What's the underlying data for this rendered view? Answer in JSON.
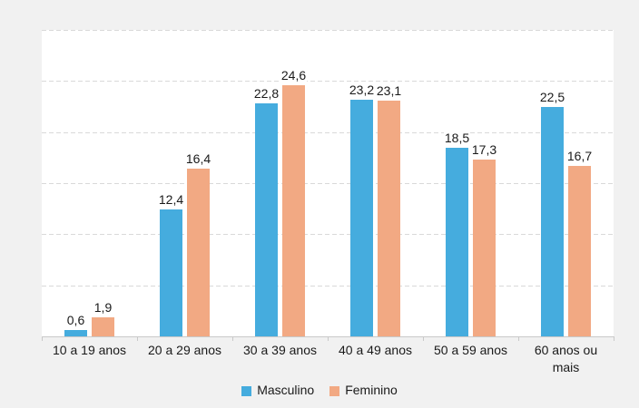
{
  "chart_data": {
    "type": "bar",
    "title": "",
    "xlabel": "",
    "ylabel": "",
    "categories": [
      "10 a 19 anos",
      "20 a 29 anos",
      "30 a 39 anos",
      "40 a 49 anos",
      "50 a 59 anos",
      "60 anos ou mais"
    ],
    "series": [
      {
        "name": "Masculino",
        "color": "#45ACDE",
        "values": [
          0.6,
          12.4,
          22.8,
          23.2,
          18.5,
          22.5
        ],
        "value_labels": [
          "0,6",
          "12,4",
          "22,8",
          "23,2",
          "18,5",
          "22,5"
        ]
      },
      {
        "name": "Feminino",
        "color": "#F2A983",
        "values": [
          1.9,
          16.4,
          24.6,
          23.1,
          17.3,
          16.7
        ],
        "value_labels": [
          "1,9",
          "16,4",
          "24,6",
          "23,1",
          "17,3",
          "16,7"
        ]
      }
    ],
    "ylim": [
      0,
      30
    ],
    "grid_step": 5,
    "grid": "horizontal-dashed",
    "y_axis_labels_visible": false,
    "legend_position": "bottom",
    "decimal_separator": ","
  },
  "colors": {
    "page_background": "#F1F1F1",
    "plot_background": "#FFFFFF",
    "gridline": "#D9D9D9",
    "axis_line": "#C9C9C9",
    "label_text": "#1A1A1A"
  }
}
